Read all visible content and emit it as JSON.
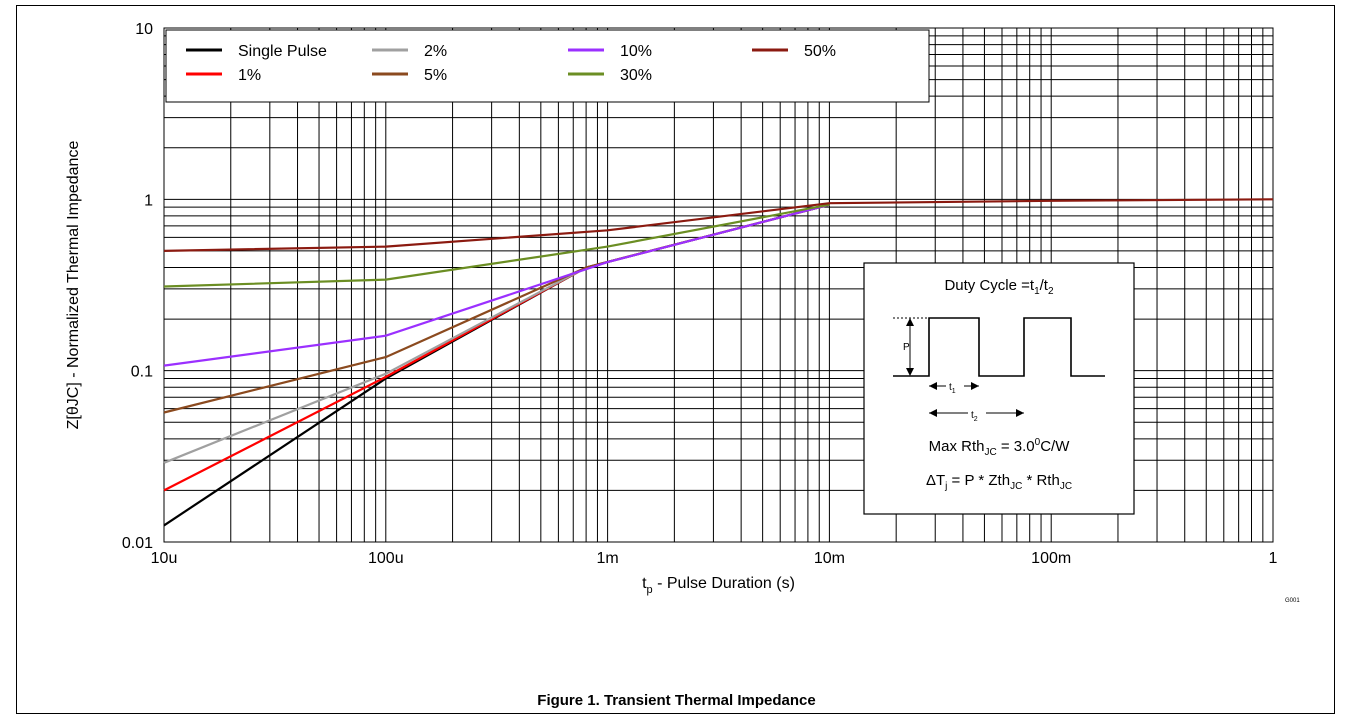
{
  "chart_data": {
    "type": "line",
    "x_scale": "log",
    "y_scale": "log",
    "xlim": [
      1e-05,
      1
    ],
    "ylim": [
      0.01,
      10
    ],
    "x_ticks": [
      {
        "value": 1e-05,
        "label": "10u"
      },
      {
        "value": 0.0001,
        "label": "100u"
      },
      {
        "value": 0.001,
        "label": "1m"
      },
      {
        "value": 0.01,
        "label": "10m"
      },
      {
        "value": 0.1,
        "label": "100m"
      },
      {
        "value": 1,
        "label": "1"
      }
    ],
    "y_ticks": [
      {
        "value": 0.01,
        "label": "0.01"
      },
      {
        "value": 0.1,
        "label": "0.1"
      },
      {
        "value": 1,
        "label": "1"
      },
      {
        "value": 10,
        "label": "10"
      }
    ],
    "xlabel": {
      "main": "t",
      "sub": "p",
      "rest": " - Pulse Duration (s)"
    },
    "ylabel": "Z[θJC] - Normalized Thermal Impedance",
    "grid": true,
    "legend_position": "top-left",
    "series": [
      {
        "name": "Single Pulse",
        "color": "#000000",
        "x": [
          1e-05,
          0.0001,
          0.0008,
          0.01
        ],
        "y": [
          0.0125,
          0.09,
          0.4,
          0.93
        ]
      },
      {
        "name": "1%",
        "color": "#ff0000",
        "x": [
          1e-05,
          0.0001,
          0.0008,
          0.01
        ],
        "y": [
          0.02,
          0.092,
          0.4,
          0.93
        ]
      },
      {
        "name": "2%",
        "color": "#a0a0a0",
        "x": [
          1e-05,
          0.0001,
          0.0008,
          0.01
        ],
        "y": [
          0.029,
          0.096,
          0.4,
          0.93
        ]
      },
      {
        "name": "5%",
        "color": "#8b4a1f",
        "x": [
          1e-05,
          0.0001,
          0.0008,
          0.01
        ],
        "y": [
          0.057,
          0.12,
          0.4,
          0.93
        ]
      },
      {
        "name": "10%",
        "color": "#9b30ff",
        "x": [
          1e-05,
          0.0001,
          0.001,
          0.01
        ],
        "y": [
          0.107,
          0.16,
          0.43,
          0.93
        ]
      },
      {
        "name": "30%",
        "color": "#6b8e23",
        "x": [
          1e-05,
          0.0001,
          0.001,
          0.01
        ],
        "y": [
          0.31,
          0.34,
          0.53,
          0.93
        ]
      },
      {
        "name": "50%",
        "color": "#8b1a10",
        "x": [
          1e-05,
          0.0001,
          0.001,
          0.01,
          0.1,
          1
        ],
        "y": [
          0.5,
          0.53,
          0.66,
          0.95,
          0.98,
          1.0
        ]
      }
    ]
  },
  "inset": {
    "duty_cycle": {
      "text": "Duty Cycle =t",
      "s1": "1",
      "slash": "/t",
      "s2": "2"
    },
    "p_label": "P",
    "t1": {
      "text": "t",
      "sub": "1"
    },
    "t2": {
      "text": "t",
      "sub": "2"
    },
    "max_rth": {
      "text": "Max Rth",
      "sub": "JC",
      "mid": " = 3.0",
      "sup": "0",
      "end": "C/W"
    },
    "delta_tj": {
      "a": "ΔT",
      "sub_j": "j",
      "b": " = P * Zth",
      "sub1": "JC",
      "c": " * Rth",
      "sub2": "JC"
    }
  },
  "corner_mark": "G001",
  "caption": "Figure 1.  Transient Thermal Impedance"
}
